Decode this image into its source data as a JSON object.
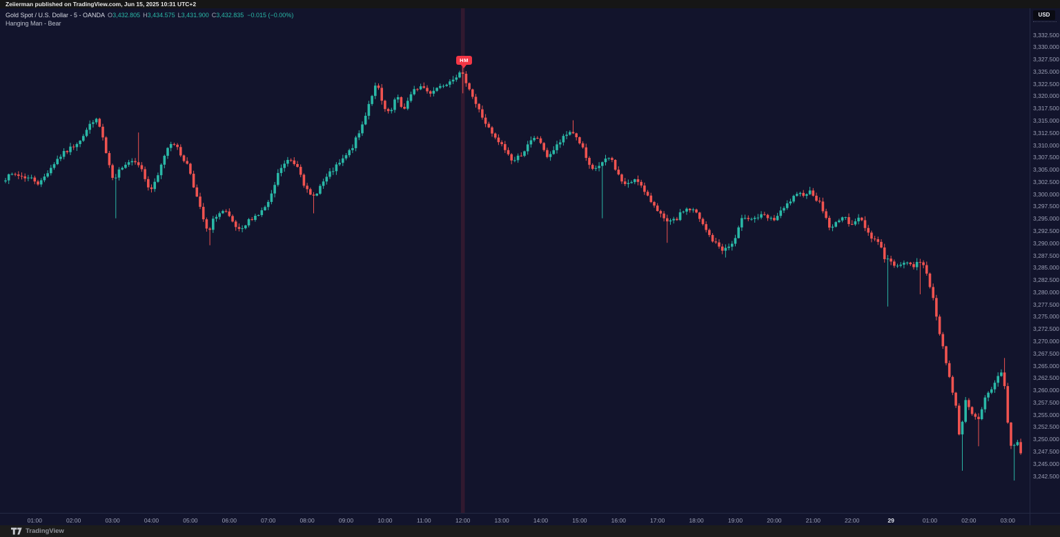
{
  "top_bar": {
    "text": "Zeiierman published on TradingView.com, Jun 15, 2025 10:31 UTC+2"
  },
  "legend": {
    "title": "Gold Spot / U.S. Dollar - 5 - OANDA",
    "ohlc": [
      {
        "label": "O",
        "value": "3,432.805"
      },
      {
        "label": "H",
        "value": "3,434.575"
      },
      {
        "label": "L",
        "value": "3,431.900"
      },
      {
        "label": "C",
        "value": "3,432.835"
      }
    ],
    "change": "−0.015 (−0.00%)",
    "indicator": "Hanging Man - Bear"
  },
  "price_axis": {
    "currency_button": "USD",
    "tick_start": 3332.5,
    "tick_step": -2.5,
    "labels": [
      "3,332.500",
      "3,330.000",
      "3,327.500",
      "3,325.000",
      "3,322.500",
      "3,320.000",
      "3,317.500",
      "3,315.000",
      "3,312.500",
      "3,310.000",
      "3,307.500",
      "3,305.000",
      "3,302.500",
      "3,300.000",
      "3,297.500",
      "3,295.000",
      "3,292.500",
      "3,290.000",
      "3,287.500",
      "3,285.000",
      "3,282.500",
      "3,280.000",
      "3,277.500",
      "3,275.000",
      "3,272.500",
      "3,270.000",
      "3,267.500",
      "3,265.000",
      "3,262.500",
      "3,260.000",
      "3,257.500",
      "3,255.000",
      "3,252.500",
      "3,250.000",
      "3,247.500",
      "3,245.000",
      "3,242.500"
    ]
  },
  "time_axis": {
    "labels": [
      "01:00",
      "02:00",
      "03:00",
      "04:00",
      "05:00",
      "06:00",
      "07:00",
      "08:00",
      "09:00",
      "10:00",
      "11:00",
      "12:00",
      "13:00",
      "14:00",
      "15:00",
      "16:00",
      "17:00",
      "18:00",
      "19:00",
      "20:00",
      "21:00",
      "22:00",
      "29",
      "01:00",
      "02:00",
      "03:00"
    ],
    "bold_index": 22
  },
  "footer": {
    "brand": "TradingView"
  },
  "colors": {
    "background": "#12142c",
    "up": "#2ab8a7",
    "down": "#ef5350",
    "marker": "#f23645",
    "highlight_band": "rgba(242,54,69,0.14)",
    "axis_text": "#9ca0b6"
  },
  "chart_data": {
    "type": "candlestick",
    "title": "Gold Spot / U.S. Dollar (XAUUSD) - 5m - OANDA",
    "interval_minutes": 5,
    "ylim": [
      3234.9,
      3337.9
    ],
    "grid": false,
    "legend_position": "top-left",
    "last_quote": {
      "open": 3432.805,
      "high": 3434.575,
      "low": 3431.9,
      "close": 3432.835,
      "change": -0.015,
      "change_pct": "-0.00%"
    },
    "marker": {
      "type": "hanging-man",
      "label": "HM",
      "day": 1,
      "time": "12:00",
      "signal": "Bear"
    },
    "session_note": "day 1 bars 00:15-22:55, one-hour break, day 2 bars 00:00-03:20",
    "seed": 7,
    "noise_amp": 1.0,
    "price_anchors": [
      {
        "d": 1,
        "t": "00:15",
        "p": 3303
      },
      {
        "d": 1,
        "t": "00:30",
        "p": 3304
      },
      {
        "d": 1,
        "t": "00:45",
        "p": 3303.5
      },
      {
        "d": 1,
        "t": "01:00",
        "p": 3303
      },
      {
        "d": 1,
        "t": "01:10",
        "p": 3302
      },
      {
        "d": 1,
        "t": "01:25",
        "p": 3305
      },
      {
        "d": 1,
        "t": "01:40",
        "p": 3307.5
      },
      {
        "d": 1,
        "t": "02:00",
        "p": 3309.5
      },
      {
        "d": 1,
        "t": "02:15",
        "p": 3311.5
      },
      {
        "d": 1,
        "t": "02:35",
        "p": 3315.5
      },
      {
        "d": 1,
        "t": "02:45",
        "p": 3313
      },
      {
        "d": 1,
        "t": "02:55",
        "p": 3306.5
      },
      {
        "d": 1,
        "t": "03:05",
        "p": 3302,
        "lo": 3295
      },
      {
        "d": 1,
        "t": "03:15",
        "p": 3305.5
      },
      {
        "d": 1,
        "t": "03:25",
        "p": 3306.5
      },
      {
        "d": 1,
        "t": "03:40",
        "p": 3307,
        "hi": 3312.5
      },
      {
        "d": 1,
        "t": "03:50",
        "p": 3304
      },
      {
        "d": 1,
        "t": "04:00",
        "p": 3300.5
      },
      {
        "d": 1,
        "t": "04:10",
        "p": 3302.5
      },
      {
        "d": 1,
        "t": "04:25",
        "p": 3309
      },
      {
        "d": 1,
        "t": "04:35",
        "p": 3311
      },
      {
        "d": 1,
        "t": "04:45",
        "p": 3308.5
      },
      {
        "d": 1,
        "t": "05:00",
        "p": 3305.5
      },
      {
        "d": 1,
        "t": "05:15",
        "p": 3298
      },
      {
        "d": 1,
        "t": "05:30",
        "p": 3291.5,
        "lo": 3289.5
      },
      {
        "d": 1,
        "t": "05:40",
        "p": 3295.5
      },
      {
        "d": 1,
        "t": "05:55",
        "p": 3296.5
      },
      {
        "d": 1,
        "t": "06:10",
        "p": 3293.5
      },
      {
        "d": 1,
        "t": "06:20",
        "p": 3292
      },
      {
        "d": 1,
        "t": "06:35",
        "p": 3295
      },
      {
        "d": 1,
        "t": "06:50",
        "p": 3296
      },
      {
        "d": 1,
        "t": "07:05",
        "p": 3298.5
      },
      {
        "d": 1,
        "t": "07:20",
        "p": 3305
      },
      {
        "d": 1,
        "t": "07:35",
        "p": 3307
      },
      {
        "d": 1,
        "t": "07:50",
        "p": 3305.5
      },
      {
        "d": 1,
        "t": "08:00",
        "p": 3301
      },
      {
        "d": 1,
        "t": "08:10",
        "p": 3299,
        "lo": 3296
      },
      {
        "d": 1,
        "t": "08:25",
        "p": 3302
      },
      {
        "d": 1,
        "t": "08:40",
        "p": 3304.5
      },
      {
        "d": 1,
        "t": "08:55",
        "p": 3306.5
      },
      {
        "d": 1,
        "t": "09:10",
        "p": 3309
      },
      {
        "d": 1,
        "t": "09:25",
        "p": 3313
      },
      {
        "d": 1,
        "t": "09:40",
        "p": 3319.5
      },
      {
        "d": 1,
        "t": "09:50",
        "p": 3322.5
      },
      {
        "d": 1,
        "t": "10:00",
        "p": 3317.5
      },
      {
        "d": 1,
        "t": "10:10",
        "p": 3316
      },
      {
        "d": 1,
        "t": "10:20",
        "p": 3320
      },
      {
        "d": 1,
        "t": "10:30",
        "p": 3317
      },
      {
        "d": 1,
        "t": "10:40",
        "p": 3319.5
      },
      {
        "d": 1,
        "t": "10:50",
        "p": 3321.5
      },
      {
        "d": 1,
        "t": "11:00",
        "p": 3322
      },
      {
        "d": 1,
        "t": "11:10",
        "p": 3320.5
      },
      {
        "d": 1,
        "t": "11:20",
        "p": 3321.5
      },
      {
        "d": 1,
        "t": "11:35",
        "p": 3322.5
      },
      {
        "d": 1,
        "t": "11:50",
        "p": 3324
      },
      {
        "d": 1,
        "t": "12:00",
        "p": 3324.5,
        "lo": 3320.5,
        "hi": 3326.5
      },
      {
        "d": 1,
        "t": "12:10",
        "p": 3322.5
      },
      {
        "d": 1,
        "t": "12:20",
        "p": 3319
      },
      {
        "d": 1,
        "t": "12:35",
        "p": 3315
      },
      {
        "d": 1,
        "t": "12:50",
        "p": 3311.5
      },
      {
        "d": 1,
        "t": "13:05",
        "p": 3309.5
      },
      {
        "d": 1,
        "t": "13:20",
        "p": 3306.5
      },
      {
        "d": 1,
        "t": "13:35",
        "p": 3308.5
      },
      {
        "d": 1,
        "t": "13:50",
        "p": 3311
      },
      {
        "d": 1,
        "t": "14:00",
        "p": 3311.5
      },
      {
        "d": 1,
        "t": "14:10",
        "p": 3307.5
      },
      {
        "d": 1,
        "t": "14:20",
        "p": 3308.5
      },
      {
        "d": 1,
        "t": "14:35",
        "p": 3311
      },
      {
        "d": 1,
        "t": "14:50",
        "p": 3313,
        "hi": 3315
      },
      {
        "d": 1,
        "t": "15:05",
        "p": 3310
      },
      {
        "d": 1,
        "t": "15:20",
        "p": 3304.5
      },
      {
        "d": 1,
        "t": "15:35",
        "p": 3306,
        "lo": 3295
      },
      {
        "d": 1,
        "t": "15:50",
        "p": 3307.5
      },
      {
        "d": 1,
        "t": "16:05",
        "p": 3303
      },
      {
        "d": 1,
        "t": "16:15",
        "p": 3301.5
      },
      {
        "d": 1,
        "t": "16:30",
        "p": 3303.5
      },
      {
        "d": 1,
        "t": "16:45",
        "p": 3299.5
      },
      {
        "d": 1,
        "t": "17:00",
        "p": 3297.5
      },
      {
        "d": 1,
        "t": "17:15",
        "p": 3294,
        "lo": 3290
      },
      {
        "d": 1,
        "t": "17:30",
        "p": 3294.5
      },
      {
        "d": 1,
        "t": "17:45",
        "p": 3297
      },
      {
        "d": 1,
        "t": "18:00",
        "p": 3296.5
      },
      {
        "d": 1,
        "t": "18:15",
        "p": 3293
      },
      {
        "d": 1,
        "t": "18:30",
        "p": 3290
      },
      {
        "d": 1,
        "t": "18:45",
        "p": 3288.5,
        "lo": 3287
      },
      {
        "d": 1,
        "t": "19:00",
        "p": 3290
      },
      {
        "d": 1,
        "t": "19:15",
        "p": 3295.5
      },
      {
        "d": 1,
        "t": "19:30",
        "p": 3295
      },
      {
        "d": 1,
        "t": "19:45",
        "p": 3295.5
      },
      {
        "d": 1,
        "t": "20:00",
        "p": 3294.5
      },
      {
        "d": 1,
        "t": "20:15",
        "p": 3296.5
      },
      {
        "d": 1,
        "t": "20:30",
        "p": 3299
      },
      {
        "d": 1,
        "t": "20:45",
        "p": 3300
      },
      {
        "d": 1,
        "t": "21:00",
        "p": 3300.5
      },
      {
        "d": 1,
        "t": "21:15",
        "p": 3297.5
      },
      {
        "d": 1,
        "t": "21:30",
        "p": 3292.5
      },
      {
        "d": 1,
        "t": "21:45",
        "p": 3295.5
      },
      {
        "d": 1,
        "t": "22:00",
        "p": 3294
      },
      {
        "d": 1,
        "t": "22:15",
        "p": 3295
      },
      {
        "d": 1,
        "t": "22:30",
        "p": 3291.5
      },
      {
        "d": 1,
        "t": "22:45",
        "p": 3290
      },
      {
        "d": 1,
        "t": "22:55",
        "p": 3286,
        "lo": 3277
      },
      {
        "d": 2,
        "t": "00:00",
        "p": 3287
      },
      {
        "d": 2,
        "t": "00:10",
        "p": 3284.5
      },
      {
        "d": 2,
        "t": "00:20",
        "p": 3286.5
      },
      {
        "d": 2,
        "t": "00:35",
        "p": 3285
      },
      {
        "d": 2,
        "t": "00:45",
        "p": 3286,
        "lo": 3279.5
      },
      {
        "d": 2,
        "t": "00:55",
        "p": 3285.5
      },
      {
        "d": 2,
        "t": "01:05",
        "p": 3280
      },
      {
        "d": 2,
        "t": "01:15",
        "p": 3273
      },
      {
        "d": 2,
        "t": "01:25",
        "p": 3267.5
      },
      {
        "d": 2,
        "t": "01:35",
        "p": 3261
      },
      {
        "d": 2,
        "t": "01:45",
        "p": 3255
      },
      {
        "d": 2,
        "t": "01:50",
        "p": 3247.5,
        "lo": 3243.5
      },
      {
        "d": 2,
        "t": "01:55",
        "p": 3259
      },
      {
        "d": 2,
        "t": "02:05",
        "p": 3256
      },
      {
        "d": 2,
        "t": "02:15",
        "p": 3253.5,
        "lo": 3248.5
      },
      {
        "d": 2,
        "t": "02:25",
        "p": 3257.5
      },
      {
        "d": 2,
        "t": "02:35",
        "p": 3259.5
      },
      {
        "d": 2,
        "t": "02:45",
        "p": 3262
      },
      {
        "d": 2,
        "t": "02:55",
        "p": 3264.5,
        "hi": 3266.5
      },
      {
        "d": 2,
        "t": "03:00",
        "p": 3257
      },
      {
        "d": 2,
        "t": "03:05",
        "p": 3250.5
      },
      {
        "d": 2,
        "t": "03:10",
        "p": 3246.5,
        "lo": 3241.5
      },
      {
        "d": 2,
        "t": "03:15",
        "p": 3250.5
      },
      {
        "d": 2,
        "t": "03:20",
        "p": 3247.5
      }
    ]
  }
}
